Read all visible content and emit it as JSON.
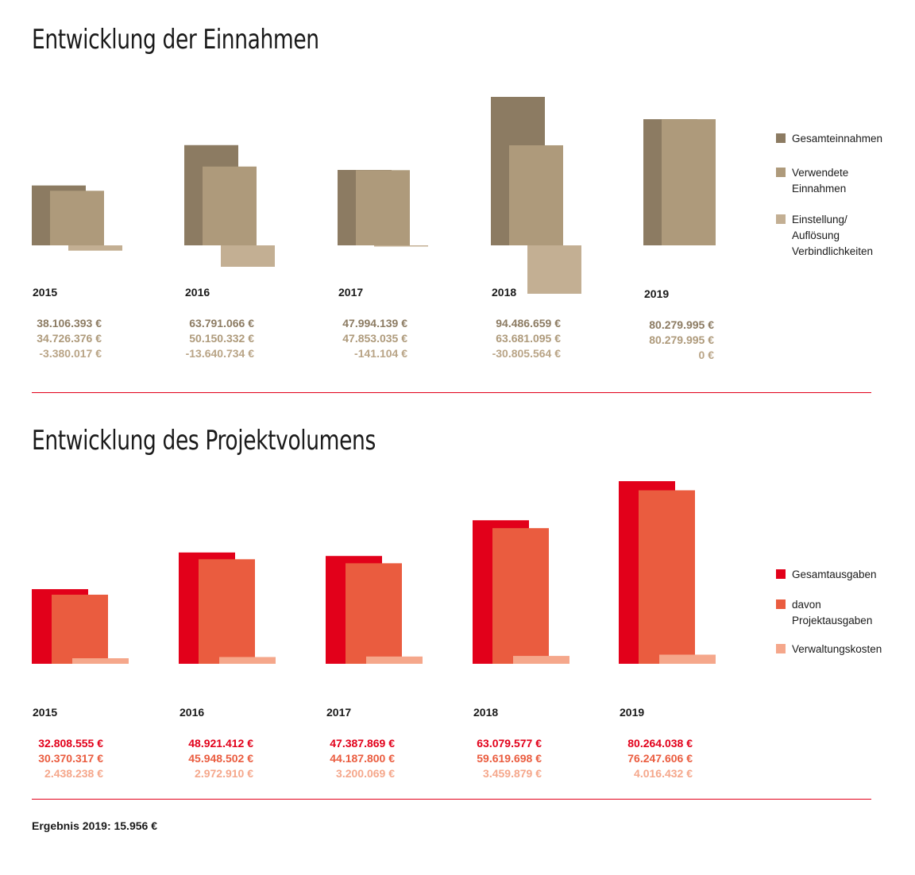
{
  "colors": {
    "accent_red": "#e2001a",
    "text": "#1a1a1a"
  },
  "result": "Ergebnis 2019: 15.956 €",
  "chart_data": [
    {
      "type": "bar",
      "title": "Entwicklung der Einnahmen",
      "categories": [
        "2015",
        "2016",
        "2017",
        "2018",
        "2019"
      ],
      "series": [
        {
          "name": "Gesamteinnahmen",
          "color": "#8c7b62",
          "values": [
            38106393,
            63791066,
            47994139,
            94486659,
            80279995
          ],
          "labels": [
            "38.106.393 €",
            "63.791.066 €",
            "47.994.139 €",
            "94.486.659 €",
            "80.279.995 €"
          ]
        },
        {
          "name": "Verwendete\nEinnahmen",
          "color": "#ae9a7b",
          "values": [
            34726376,
            50150332,
            47853035,
            63681095,
            80279995
          ],
          "labels": [
            "34.726.376 €",
            "50.150.332 €",
            "47.853.035 €",
            "63.681.095 €",
            "80.279.995 €"
          ]
        },
        {
          "name": "Einstellung/\nAuflösung\nVerbindlichkeiten",
          "color": "#c3af93",
          "values": [
            -3380017,
            -13640734,
            -141104,
            -30805564,
            0
          ],
          "labels": [
            "-3.380.017 €",
            "-13.640.734 €",
            "-141.104 €",
            "-30.805.564 €",
            "0 €"
          ]
        }
      ]
    },
    {
      "type": "bar",
      "title": "Entwicklung des Projektvolumens",
      "categories": [
        "2015",
        "2016",
        "2017",
        "2018",
        "2019"
      ],
      "series": [
        {
          "name": "Gesamtausgaben",
          "color": "#e2001a",
          "values": [
            32808555,
            48921412,
            47387869,
            63079577,
            80264038
          ],
          "labels": [
            "32.808.555 €",
            "48.921.412 €",
            "47.387.869 €",
            "63.079.577 €",
            "80.264.038 €"
          ]
        },
        {
          "name": "davon\nProjektausgaben",
          "color": "#ea5c3f",
          "values": [
            30370317,
            45948502,
            44187800,
            59619698,
            76247606
          ],
          "labels": [
            "30.370.317 €",
            "45.948.502 €",
            "44.187.800 €",
            "59.619.698 €",
            "76.247.606 €"
          ]
        },
        {
          "name": "Verwaltungskosten",
          "color": "#f5a78b",
          "values": [
            2438238,
            2972910,
            3200069,
            3459879,
            4016432
          ],
          "labels": [
            "2.438.238 €",
            "2.972.910 €",
            "3.200.069 €",
            "3.459.879 €",
            "4.016.432 €"
          ]
        }
      ]
    }
  ]
}
